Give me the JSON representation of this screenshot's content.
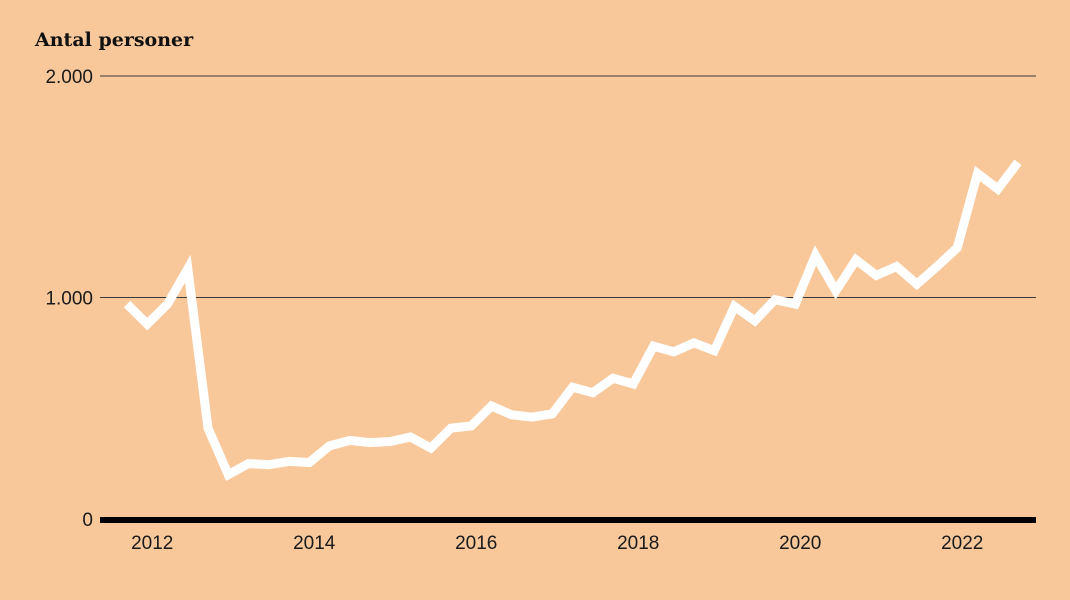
{
  "chart_data": {
    "type": "line",
    "title": "",
    "ylabel": "Antal personer",
    "xlabel": "",
    "ylim": [
      0,
      2000
    ],
    "xlim": [
      2011.7,
      2023.0
    ],
    "grid": true,
    "legend": "none",
    "y_ticks": [
      {
        "value": 0,
        "label": "0"
      },
      {
        "value": 1000,
        "label": "1.000"
      },
      {
        "value": 2000,
        "label": "2.000"
      }
    ],
    "x_ticks": [
      {
        "value": 2012,
        "label": "2012"
      },
      {
        "value": 2014,
        "label": "2014"
      },
      {
        "value": 2016,
        "label": "2016"
      },
      {
        "value": 2018,
        "label": "2018"
      },
      {
        "value": 2020,
        "label": "2020"
      },
      {
        "value": 2022,
        "label": "2022"
      }
    ],
    "series": [
      {
        "color": "#ffffff",
        "x": [
          2011.75,
          2012.0,
          2012.25,
          2012.5,
          2012.75,
          2013.0,
          2013.25,
          2013.5,
          2013.75,
          2014.0,
          2014.25,
          2014.5,
          2014.75,
          2015.0,
          2015.25,
          2015.5,
          2015.75,
          2016.0,
          2016.25,
          2016.5,
          2016.75,
          2017.0,
          2017.25,
          2017.5,
          2017.75,
          2018.0,
          2018.25,
          2018.5,
          2018.75,
          2019.0,
          2019.25,
          2019.5,
          2019.75,
          2020.0,
          2020.25,
          2020.5,
          2020.75,
          2021.0,
          2021.25,
          2021.5,
          2021.75,
          2022.0,
          2022.25,
          2022.5,
          2022.75
        ],
        "values": [
          970,
          880,
          970,
          1130,
          410,
          200,
          250,
          245,
          260,
          255,
          330,
          355,
          345,
          350,
          370,
          320,
          410,
          420,
          510,
          470,
          460,
          475,
          595,
          570,
          635,
          610,
          780,
          755,
          795,
          760,
          960,
          895,
          990,
          970,
          1190,
          1030,
          1170,
          1100,
          1140,
          1060,
          1140,
          1225,
          1560,
          1490,
          1610
        ]
      }
    ],
    "colors": {
      "background": "#f8c89b",
      "line": "#ffffff",
      "grid": "#3a3a3a",
      "baseline": "#000000",
      "text": "#1a1a1a"
    }
  }
}
